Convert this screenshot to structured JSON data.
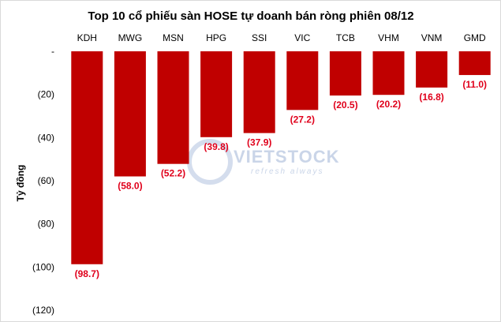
{
  "chart_data": {
    "type": "bar",
    "title": "Top 10 cổ phiếu sàn HOSE tự doanh bán ròng phiên 08/12",
    "ylabel": "Tỷ đồng",
    "categories": [
      "KDH",
      "MWG",
      "MSN",
      "HPG",
      "SSI",
      "VIC",
      "TCB",
      "VHM",
      "VNM",
      "GMD"
    ],
    "values": [
      -98.7,
      -58.0,
      -52.2,
      -39.8,
      -37.9,
      -27.2,
      -20.5,
      -20.2,
      -16.8,
      -11.0
    ],
    "data_labels": [
      "(98.7)",
      "(58.0)",
      "(52.2)",
      "(39.8)",
      "(37.9)",
      "(27.2)",
      "(20.5)",
      "(20.2)",
      "(16.8)",
      "(11.0)"
    ],
    "y_ticks": [
      0,
      -20,
      -40,
      -60,
      -80,
      -100,
      -120
    ],
    "y_tick_labels": [
      "-",
      "(20)",
      "(40)",
      "(60)",
      "(80)",
      "(100)",
      "(120)"
    ],
    "ylim": [
      -120,
      0
    ],
    "grid": false,
    "bar_color": "#c00000",
    "label_color": "#e0001b"
  },
  "watermark": {
    "brand": "VIETSTOCK",
    "tagline": "refresh always",
    "color": "#9fb4d6"
  }
}
